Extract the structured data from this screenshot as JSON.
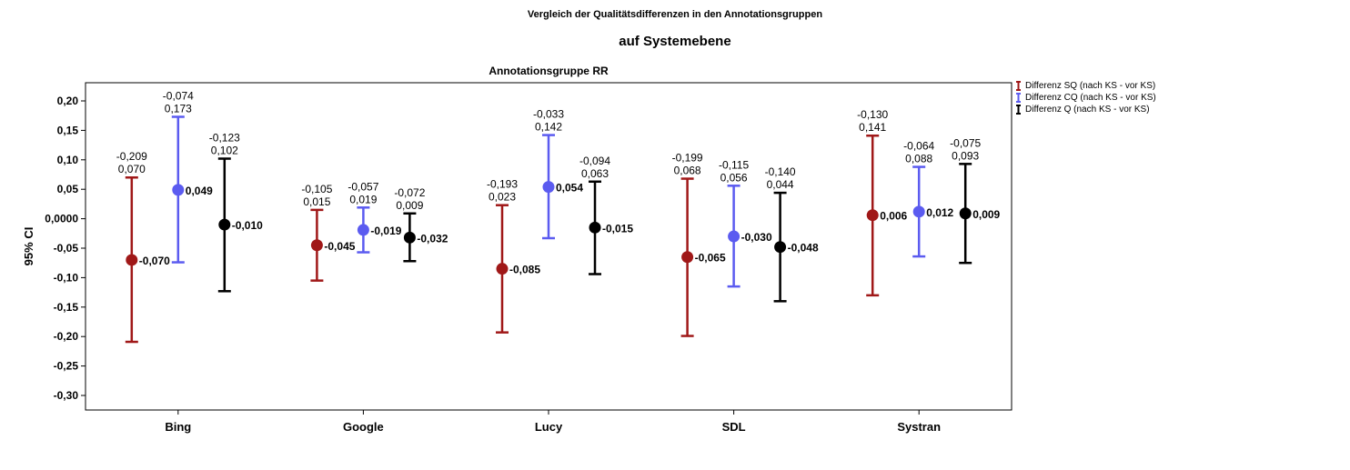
{
  "title": "Vergleich der Qualitätsdifferenzen in den Annotationsgruppen",
  "subtitle": "auf Systemebene",
  "panel_title": "Annotationsgruppe RR",
  "legend": [
    {
      "name": "Differenz SQ (nach KS - vor KS)",
      "color": "#a01818"
    },
    {
      "name": "Differenz CQ (nach KS - vor KS)",
      "color": "#5b5bf0"
    },
    {
      "name": "Differenz Q (nach KS - vor KS)",
      "color": "#000000"
    }
  ],
  "chart_data": {
    "type": "errorbar",
    "title": "Vergleich der Qualitätsdifferenzen in den Annotationsgruppen",
    "subtitle": "auf Systemebene",
    "panel": "Annotationsgruppe RR",
    "xlabel": "",
    "ylabel": "95% CI",
    "ylim": [
      -0.33,
      0.23
    ],
    "yticks": [
      "0,20",
      "0,15",
      "0,10",
      "0,05",
      "0,0000",
      "-0,05",
      "-0,10",
      "-0,15",
      "-0,20",
      "-0,25",
      "-0,30"
    ],
    "ytick_values": [
      0.2,
      0.15,
      0.1,
      0.05,
      0.0,
      -0.05,
      -0.1,
      -0.15,
      -0.2,
      -0.25,
      -0.3
    ],
    "categories": [
      "Bing",
      "Google",
      "Lucy",
      "SDL",
      "Systran"
    ],
    "legend_position": "top-right",
    "grid": false,
    "series": [
      {
        "name": "Differenz SQ (nach KS - vor KS)",
        "color": "#a01818",
        "mean": [
          -0.07,
          -0.045,
          -0.085,
          -0.065,
          0.006
        ],
        "lower": [
          -0.209,
          -0.105,
          -0.193,
          -0.199,
          -0.13
        ],
        "upper": [
          0.07,
          0.015,
          0.023,
          0.068,
          0.141
        ],
        "mean_labels": [
          "-0,070",
          "-0,045",
          "-0,085",
          "-0,065",
          "0,006"
        ],
        "lower_labels": [
          "-0,209",
          "-0,105",
          "-0,193",
          "-0,199",
          "-0,130"
        ],
        "upper_labels": [
          "0,070",
          "0,015",
          "0,023",
          "0,068",
          "0,141"
        ]
      },
      {
        "name": "Differenz CQ (nach KS - vor KS)",
        "color": "#5b5bf0",
        "mean": [
          0.049,
          -0.019,
          0.054,
          -0.03,
          0.012
        ],
        "lower": [
          -0.074,
          -0.057,
          -0.033,
          -0.115,
          -0.064
        ],
        "upper": [
          0.173,
          0.019,
          0.142,
          0.056,
          0.088
        ],
        "mean_labels": [
          "0,049",
          "-0,019",
          "0,054",
          "-0,030",
          "0,012"
        ],
        "lower_labels": [
          "-0,074",
          "-0,057",
          "-0,033",
          "-0,115",
          "-0,064"
        ],
        "upper_labels": [
          "0,173",
          "0,019",
          "0,142",
          "0,056",
          "0,088"
        ]
      },
      {
        "name": "Differenz Q (nach KS - vor KS)",
        "color": "#000000",
        "mean": [
          -0.01,
          -0.032,
          -0.015,
          -0.048,
          0.009
        ],
        "lower": [
          -0.123,
          -0.072,
          -0.094,
          -0.14,
          -0.075
        ],
        "upper": [
          0.102,
          0.009,
          0.063,
          0.044,
          0.093
        ],
        "mean_labels": [
          "-0,010",
          "-0,032",
          "-0,015",
          "-0,048",
          "0,009"
        ],
        "lower_labels": [
          "-0,123",
          "-0,072",
          "-0,094",
          "-0,140",
          "-0,075"
        ],
        "upper_labels": [
          "0,102",
          "0,009",
          "0,063",
          "0,044",
          "0,093"
        ]
      }
    ]
  }
}
